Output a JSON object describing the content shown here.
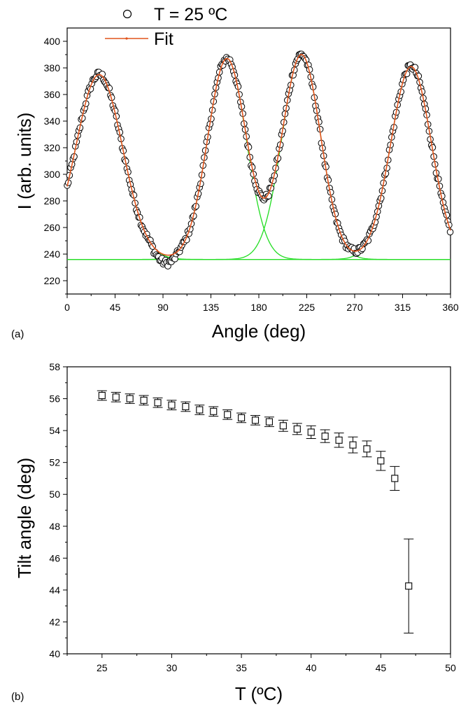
{
  "chart_data": [
    {
      "panel_label": "(a)",
      "type": "scatter",
      "xlabel": "Angle (deg)",
      "ylabel": "I (arb. units)",
      "xlim": [
        0,
        360
      ],
      "ylim": [
        210,
        410
      ],
      "xticks": [
        0,
        45,
        90,
        135,
        180,
        225,
        270,
        315,
        360
      ],
      "yticks": [
        220,
        240,
        260,
        280,
        300,
        320,
        340,
        360,
        380,
        400
      ],
      "legend": {
        "placement": "top-left",
        "entries": [
          "T = 25 ºC",
          "Fit"
        ]
      },
      "colors": {
        "data": "#000000",
        "fit": "#e0531b",
        "components": "#22dd22"
      },
      "baseline": 236,
      "peaks": [
        {
          "center": 30,
          "height": 375,
          "sigma": 22
        },
        {
          "center": 150,
          "height": 387,
          "sigma": 18
        },
        {
          "center": 220,
          "height": 390,
          "sigma": 18
        },
        {
          "center": 323,
          "height": 381,
          "sigma": 19
        }
      ],
      "series": [
        {
          "name": "T = 25 ºC",
          "kind": "markers"
        },
        {
          "name": "Fit",
          "kind": "line"
        }
      ]
    },
    {
      "panel_label": "(b)",
      "type": "scatter",
      "xlabel": "T (ºC)",
      "ylabel": "Tilt angle (deg)",
      "xlim": [
        22.5,
        50
      ],
      "ylim": [
        40,
        58
      ],
      "xticks": [
        25,
        30,
        35,
        40,
        45,
        50
      ],
      "yticks": [
        40,
        42,
        44,
        46,
        48,
        50,
        52,
        54,
        56,
        58
      ],
      "points": [
        {
          "x": 25,
          "y": 56.2,
          "err": 0.3
        },
        {
          "x": 26,
          "y": 56.1,
          "err": 0.3
        },
        {
          "x": 27,
          "y": 56.0,
          "err": 0.3
        },
        {
          "x": 28,
          "y": 55.9,
          "err": 0.3
        },
        {
          "x": 29,
          "y": 55.75,
          "err": 0.3
        },
        {
          "x": 30,
          "y": 55.6,
          "err": 0.3
        },
        {
          "x": 31,
          "y": 55.5,
          "err": 0.3
        },
        {
          "x": 32,
          "y": 55.3,
          "err": 0.3
        },
        {
          "x": 33,
          "y": 55.2,
          "err": 0.3
        },
        {
          "x": 34,
          "y": 55.0,
          "err": 0.3
        },
        {
          "x": 35,
          "y": 54.8,
          "err": 0.3
        },
        {
          "x": 36,
          "y": 54.65,
          "err": 0.3
        },
        {
          "x": 37,
          "y": 54.55,
          "err": 0.3
        },
        {
          "x": 38,
          "y": 54.3,
          "err": 0.35
        },
        {
          "x": 39,
          "y": 54.1,
          "err": 0.35
        },
        {
          "x": 40,
          "y": 53.9,
          "err": 0.4
        },
        {
          "x": 41,
          "y": 53.65,
          "err": 0.4
        },
        {
          "x": 42,
          "y": 53.4,
          "err": 0.45
        },
        {
          "x": 43,
          "y": 53.1,
          "err": 0.5
        },
        {
          "x": 44,
          "y": 52.85,
          "err": 0.5
        },
        {
          "x": 45,
          "y": 52.1,
          "err": 0.6
        },
        {
          "x": 46,
          "y": 51.0,
          "err": 0.75
        },
        {
          "x": 47,
          "y": 44.25,
          "err": 2.95
        }
      ]
    }
  ]
}
